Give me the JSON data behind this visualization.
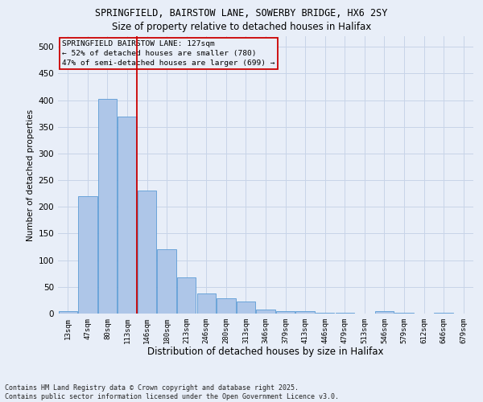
{
  "title1": "SPRINGFIELD, BAIRSTOW LANE, SOWERBY BRIDGE, HX6 2SY",
  "title2": "Size of property relative to detached houses in Halifax",
  "xlabel": "Distribution of detached houses by size in Halifax",
  "ylabel": "Number of detached properties",
  "categories": [
    "13sqm",
    "47sqm",
    "80sqm",
    "113sqm",
    "146sqm",
    "180sqm",
    "213sqm",
    "246sqm",
    "280sqm",
    "313sqm",
    "346sqm",
    "379sqm",
    "413sqm",
    "446sqm",
    "479sqm",
    "513sqm",
    "546sqm",
    "579sqm",
    "612sqm",
    "646sqm",
    "679sqm"
  ],
  "values": [
    4,
    220,
    403,
    370,
    230,
    120,
    68,
    38,
    28,
    22,
    8,
    5,
    4,
    2,
    1,
    0,
    5,
    1,
    0,
    1,
    0
  ],
  "bar_color": "#aec6e8",
  "bar_edge_color": "#5b9bd5",
  "grid_color": "#c8d4e8",
  "background_color": "#e8eef8",
  "vline_color": "#cc0000",
  "vline_x_index": 3,
  "annotation_text": "SPRINGFIELD BAIRSTOW LANE: 127sqm\n← 52% of detached houses are smaller (780)\n47% of semi-detached houses are larger (699) →",
  "annotation_box_color": "#cc0000",
  "footer": "Contains HM Land Registry data © Crown copyright and database right 2025.\nContains public sector information licensed under the Open Government Licence v3.0.",
  "ylim": [
    0,
    520
  ],
  "yticks": [
    0,
    50,
    100,
    150,
    200,
    250,
    300,
    350,
    400,
    450,
    500
  ],
  "title1_fontsize": 8.5,
  "title2_fontsize": 8.5,
  "xlabel_fontsize": 8.5,
  "ylabel_fontsize": 7.5,
  "xtick_fontsize": 6.5,
  "ytick_fontsize": 7.5,
  "footer_fontsize": 6.0
}
